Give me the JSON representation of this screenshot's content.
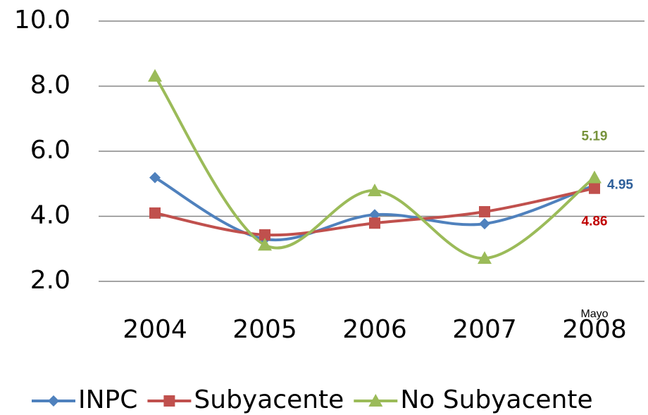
{
  "chart_data": {
    "type": "line",
    "categories": [
      "2004",
      "2005",
      "2006",
      "2007",
      "2008"
    ],
    "annotation": "Mayo",
    "series": [
      {
        "name": "INPC",
        "color": "#4f81bd",
        "label_color": "#2e5f9a",
        "marker": "diamond",
        "label_position": "right",
        "values": [
          5.19,
          3.3,
          4.05,
          3.77,
          4.95
        ]
      },
      {
        "name": "Subyacente",
        "color": "#c0504d",
        "label_color": "#c00000",
        "marker": "square",
        "label_position": "below",
        "values": [
          4.1,
          3.43,
          3.79,
          4.14,
          4.86
        ]
      },
      {
        "name": "No Subyacente",
        "color": "#9bbb59",
        "label_color": "#77933c",
        "marker": "triangle",
        "label_position": "above",
        "values": [
          8.31,
          3.12,
          4.79,
          2.71,
          5.19
        ]
      }
    ],
    "label_last": true,
    "smooth": true,
    "ylim": [
      2,
      10
    ],
    "yticks": [
      {
        "value": 2,
        "label": "2.0"
      },
      {
        "value": 4,
        "label": "4.0"
      },
      {
        "value": 6,
        "label": "6.0"
      },
      {
        "value": 8,
        "label": "8.0"
      },
      {
        "value": 10,
        "label": "10.0"
      }
    ],
    "grid": true,
    "legend": "bottom"
  }
}
